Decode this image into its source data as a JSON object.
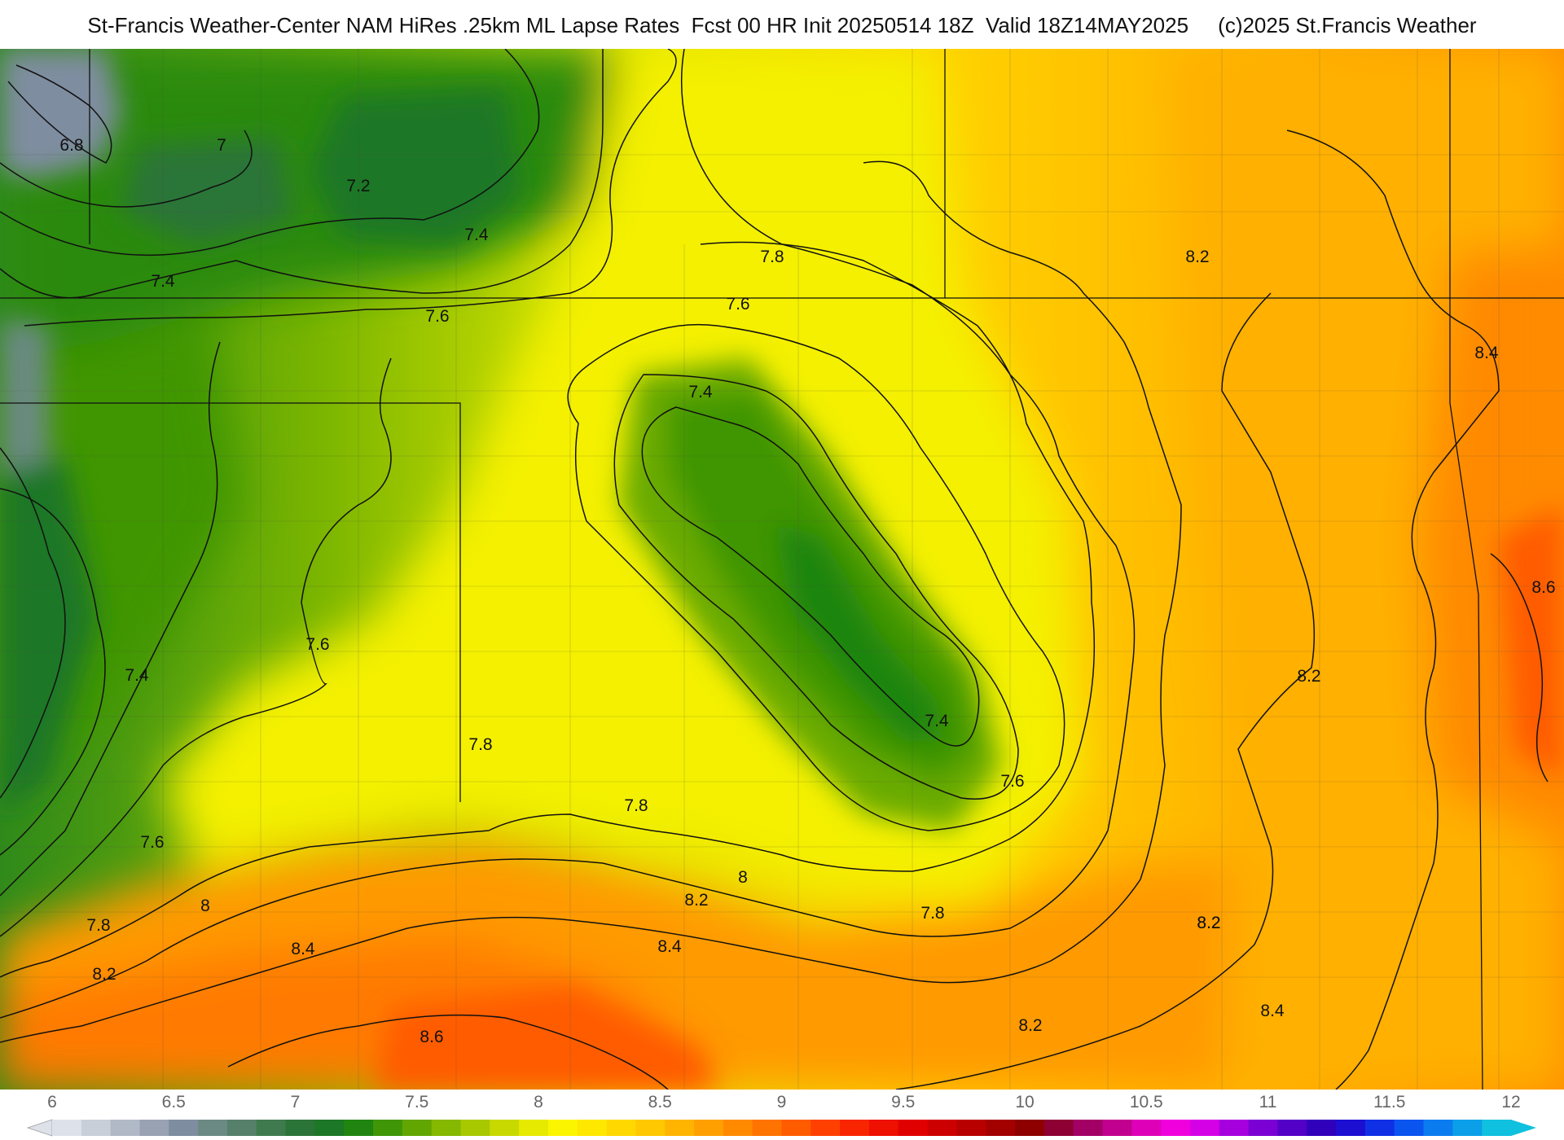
{
  "header": {
    "title": "St-Francis Weather-Center NAM HiRes .25km ML Lapse Rates  Fcst 00 HR Init 20250514 18Z  Valid 18Z14MAY2025     (c)2025 St.Francis Weather"
  },
  "field": {
    "name": "ML Lapse Rates",
    "min": 6,
    "max": 12
  },
  "contour_labels": [
    {
      "text": "6.8"
    },
    {
      "text": "7"
    },
    {
      "text": "7.2"
    },
    {
      "text": "7.4"
    },
    {
      "text": "7.4"
    },
    {
      "text": "7.6"
    },
    {
      "text": "7.6"
    },
    {
      "text": "7.8"
    },
    {
      "text": "8.2"
    },
    {
      "text": "8.4"
    },
    {
      "text": "7.4"
    },
    {
      "text": "8.6"
    },
    {
      "text": "7.6"
    },
    {
      "text": "7.4"
    },
    {
      "text": "8.2"
    },
    {
      "text": "7.4"
    },
    {
      "text": "7.8"
    },
    {
      "text": "7.6"
    },
    {
      "text": "7.8"
    },
    {
      "text": "7.6"
    },
    {
      "text": "8"
    },
    {
      "text": "8"
    },
    {
      "text": "8.2"
    },
    {
      "text": "7.8"
    },
    {
      "text": "8.2"
    },
    {
      "text": "7.8"
    },
    {
      "text": "8.2"
    },
    {
      "text": "8.4"
    },
    {
      "text": "8.4"
    },
    {
      "text": "8.2"
    },
    {
      "text": "8.6"
    },
    {
      "text": "8.2"
    },
    {
      "text": "8.4"
    }
  ],
  "legend": {
    "tick_labels": [
      "6",
      "6.5",
      "7",
      "7.5",
      "8",
      "8.5",
      "9",
      "9.5",
      "10",
      "10.5",
      "11",
      "11.5",
      "12"
    ],
    "colors": [
      "#dde2ea",
      "#c9cfd9",
      "#b1b9c6",
      "#98a2b3",
      "#7f8da0",
      "#6b8a83",
      "#56806a",
      "#3f7a4e",
      "#2b7438",
      "#1c7726",
      "#1f8510",
      "#3f9606",
      "#62a601",
      "#85b800",
      "#a8c800",
      "#c8d900",
      "#e6ea00",
      "#fbf500",
      "#ffe800",
      "#ffd800",
      "#ffc800",
      "#ffb500",
      "#ffa000",
      "#ff8a00",
      "#ff7300",
      "#ff5c00",
      "#ff4000",
      "#f82500",
      "#ee1000",
      "#e00000",
      "#cc0000",
      "#b80000",
      "#a30000",
      "#8e0000",
      "#8e0033",
      "#a30066",
      "#c2008f",
      "#dd00b8",
      "#f000dc",
      "#d400e6",
      "#a600de",
      "#7b00d3",
      "#5300c7",
      "#3000bb",
      "#1c0fd2",
      "#1030e6",
      "#0a55f0",
      "#0a7cef",
      "#0a9fe8",
      "#10c0df"
    ]
  }
}
